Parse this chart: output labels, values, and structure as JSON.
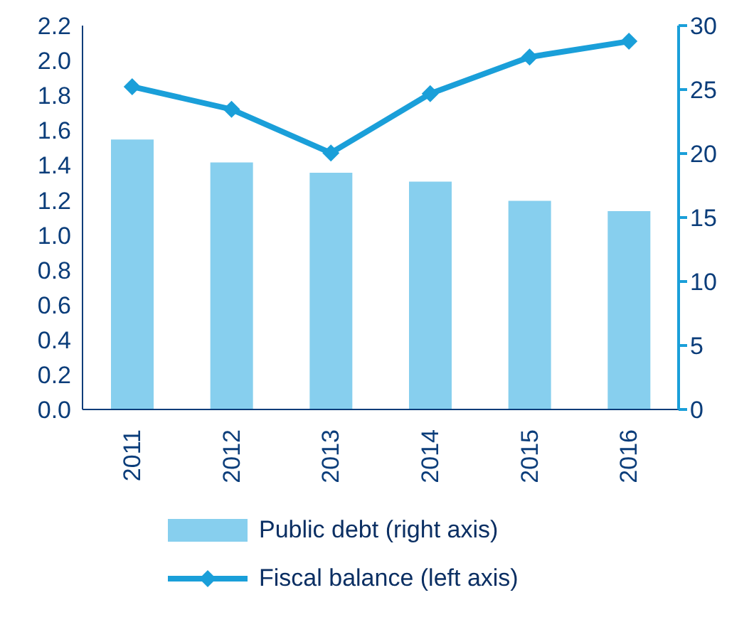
{
  "chart_data": {
    "type": "bar",
    "categories": [
      "2011",
      "2012",
      "2013",
      "2014",
      "2015",
      "2016"
    ],
    "series": [
      {
        "name": "Public debt (right axis)",
        "axis": "y2",
        "color": "#87cfee",
        "values": [
          21.1,
          19.3,
          18.5,
          17.8,
          16.3,
          15.5
        ]
      },
      {
        "name": "Fiscal balance (left axis)",
        "type": "line",
        "axis": "y",
        "color": "#1a9fd9",
        "marker": "diamond",
        "values": [
          1.85,
          1.72,
          1.47,
          1.81,
          2.02,
          2.11
        ]
      }
    ],
    "ylim": [
      0,
      2.2
    ],
    "yticks": [
      {
        "value": 0,
        "label": "0.0"
      },
      0.2,
      0.4,
      0.6,
      0.8,
      {
        "value": 1,
        "label": "1.0"
      },
      1.2,
      1.4,
      1.6,
      1.8,
      {
        "value": 2,
        "label": "2.0"
      },
      2.2
    ],
    "y2lim": [
      0,
      30
    ],
    "y2ticks": [
      0,
      5,
      10,
      15,
      20,
      25,
      30
    ],
    "legend": "bottom"
  }
}
